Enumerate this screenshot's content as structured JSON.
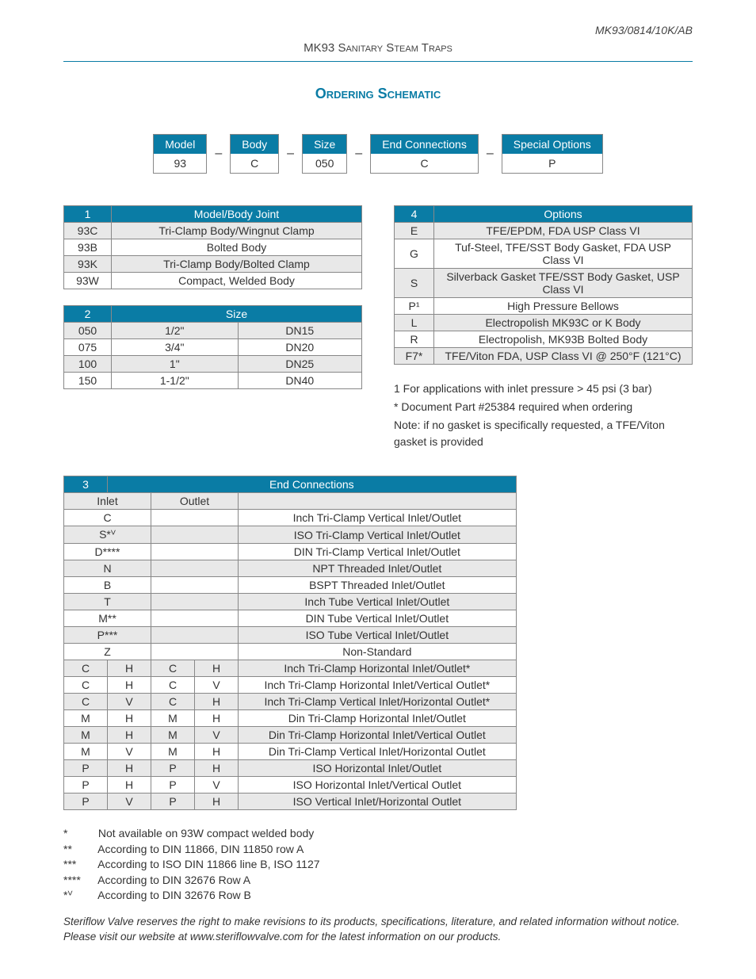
{
  "doc_code": "MK93/0814/10K/AB",
  "header": "MK93 Sanitary Steam Traps",
  "section_title": "Ordering Schematic",
  "schematic": {
    "headers": [
      "Model",
      "Body",
      "Size",
      "End Connections",
      "Special Options"
    ],
    "values": [
      "93",
      "C",
      "050",
      "C",
      "P"
    ],
    "sep": "–"
  },
  "table1": {
    "num": "1",
    "title": "Model/Body Joint",
    "rows": [
      [
        "93C",
        "Tri-Clamp Body/Wingnut Clamp"
      ],
      [
        "93B",
        "Bolted Body"
      ],
      [
        "93K",
        "Tri-Clamp Body/Bolted Clamp"
      ],
      [
        "93W",
        "Compact, Welded Body"
      ]
    ]
  },
  "table2": {
    "num": "2",
    "title": "Size",
    "rows": [
      [
        "050",
        "1/2\"",
        "DN15"
      ],
      [
        "075",
        "3/4\"",
        "DN20"
      ],
      [
        "100",
        "1\"",
        "DN25"
      ],
      [
        "150",
        "1-1/2\"",
        "DN40"
      ]
    ]
  },
  "table4": {
    "num": "4",
    "title": "Options",
    "rows": [
      [
        "E",
        "TFE/EPDM, FDA USP Class VI"
      ],
      [
        "G",
        "Tuf-Steel, TFE/SST Body Gasket, FDA USP Class VI"
      ],
      [
        "S",
        "Silverback Gasket TFE/SST Body Gasket, USP Class VI"
      ],
      [
        "P¹",
        "High Pressure Bellows"
      ],
      [
        "L",
        "Electropolish MK93C or K Body"
      ],
      [
        "R",
        "Electropolish, MK93B Bolted Body"
      ],
      [
        "F7*",
        "TFE/Viton FDA, USP Class VI @ 250°F (121°C)"
      ]
    ],
    "footnotes": [
      "1   For applications with inlet pressure > 45 psi (3 bar)",
      "*   Document Part #25384 required when ordering",
      "Note: if no gasket is specifically requested, a TFE/Viton gasket is provided"
    ]
  },
  "table3": {
    "num": "3",
    "title": "End Connections",
    "col_headers": [
      "Inlet",
      "Outlet",
      ""
    ],
    "simple_rows": [
      [
        "C",
        "Inch Tri-Clamp Vertical Inlet/Outlet"
      ],
      [
        "S*ⱽ",
        "ISO Tri-Clamp Vertical Inlet/Outlet"
      ],
      [
        "D****",
        "DIN Tri-Clamp Vertical Inlet/Outlet"
      ],
      [
        "N",
        "NPT Threaded Inlet/Outlet"
      ],
      [
        "B",
        "BSPT Threaded Inlet/Outlet"
      ],
      [
        "T",
        "Inch Tube Vertical Inlet/Outlet"
      ],
      [
        "M**",
        "DIN Tube Vertical Inlet/Outlet"
      ],
      [
        "P***",
        "ISO Tube Vertical Inlet/Outlet"
      ],
      [
        "Z",
        "Non-Standard"
      ]
    ],
    "quad_rows": [
      [
        "C",
        "H",
        "C",
        "H",
        "Inch Tri-Clamp Horizontal Inlet/Outlet*"
      ],
      [
        "C",
        "H",
        "C",
        "V",
        "Inch Tri-Clamp Horizontal Inlet/Vertical Outlet*"
      ],
      [
        "C",
        "V",
        "C",
        "H",
        "Inch Tri-Clamp Vertical Inlet/Horizontal Outlet*"
      ],
      [
        "M",
        "H",
        "M",
        "H",
        "Din Tri-Clamp Horizontal Inlet/Outlet"
      ],
      [
        "M",
        "H",
        "M",
        "V",
        "Din Tri-Clamp Horizontal Inlet/Vertical Outlet"
      ],
      [
        "M",
        "V",
        "M",
        "H",
        "Din Tri-Clamp Vertical Inlet/Horizontal  Outlet"
      ],
      [
        "P",
        "H",
        "P",
        "H",
        "ISO Horizontal Inlet/Outlet"
      ],
      [
        "P",
        "H",
        "P",
        "V",
        "ISO Horizontal Inlet/Vertical Outlet"
      ],
      [
        "P",
        "V",
        "P",
        "H",
        "ISO Vertical Inlet/Horizontal Outlet"
      ]
    ]
  },
  "end_footnotes": [
    {
      "sym": "*",
      "text": "Not available on 93W compact welded body"
    },
    {
      "sym": "**",
      "text": "According to DIN 11866, DIN 11850 row A"
    },
    {
      "sym": "***",
      "text": "According to ISO DIN 11866 line B, ISO 1127"
    },
    {
      "sym": "****",
      "text": "According to DIN 32676 Row A"
    },
    {
      "sym": "*ⱽ",
      "text": "According to DIN 32676 Row B"
    }
  ],
  "disclaimer": "Steriflow Valve reserves the right to make revisions to its products, specifications, literature, and related information without notice. Please visit our website at www.steriflowvalve.com for the latest information on our products.",
  "colors": {
    "teal": "#0a7ca5",
    "shade": "#e8e8e8",
    "border": "#888888"
  }
}
